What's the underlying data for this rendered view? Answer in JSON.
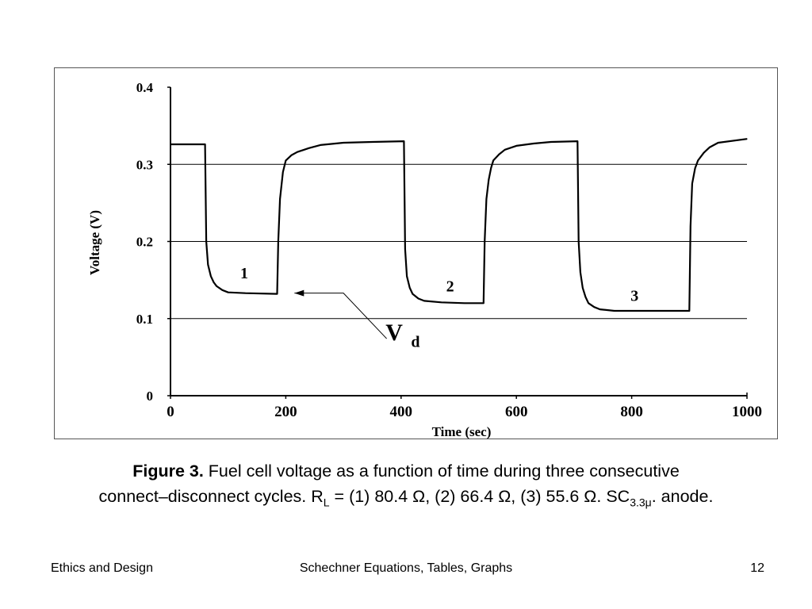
{
  "chart_data": {
    "type": "line",
    "title": "",
    "xlabel": "Time (sec)",
    "ylabel": "Voltage (V)",
    "xlim": [
      0,
      1000
    ],
    "ylim": [
      0,
      0.4
    ],
    "xticks": [
      0,
      200,
      400,
      600,
      800,
      1000
    ],
    "yticks": [
      0,
      0.1,
      0.2,
      0.3,
      0.4
    ],
    "xtick_labels": [
      "0",
      "200",
      "400",
      "600",
      "800",
      "1000"
    ],
    "ytick_labels": [
      "0",
      "0.1",
      "0.2",
      "0.3",
      "0.4"
    ],
    "grid": "horizontal",
    "series": [
      {
        "x": [
          0,
          60,
          62,
          65,
          70,
          75,
          80,
          90,
          100,
          130,
          185,
          187,
          190,
          195,
          200,
          210,
          220,
          240,
          260,
          300,
          350,
          405,
          407,
          410,
          415,
          420,
          430,
          440,
          470,
          510,
          543,
          545,
          548,
          552,
          556,
          560,
          570,
          580,
          600,
          630,
          660,
          706,
          708,
          711,
          715,
          720,
          725,
          735,
          745,
          770,
          810,
          860,
          900,
          902,
          905,
          910,
          915,
          925,
          935,
          950,
          1000
        ],
        "y": [
          0.326,
          0.326,
          0.2,
          0.17,
          0.155,
          0.147,
          0.142,
          0.137,
          0.134,
          0.133,
          0.132,
          0.2,
          0.255,
          0.29,
          0.305,
          0.312,
          0.316,
          0.321,
          0.325,
          0.328,
          0.329,
          0.33,
          0.19,
          0.155,
          0.14,
          0.132,
          0.126,
          0.123,
          0.121,
          0.12,
          0.12,
          0.2,
          0.255,
          0.28,
          0.295,
          0.305,
          0.313,
          0.319,
          0.324,
          0.327,
          0.329,
          0.33,
          0.2,
          0.16,
          0.14,
          0.128,
          0.12,
          0.115,
          0.112,
          0.11,
          0.11,
          0.11,
          0.11,
          0.22,
          0.275,
          0.295,
          0.305,
          0.315,
          0.322,
          0.328,
          0.333
        ]
      }
    ],
    "annotations": [
      {
        "text": "1",
        "x": 128,
        "y": 0.152
      },
      {
        "text": "2",
        "x": 485,
        "y": 0.135
      },
      {
        "text": "3",
        "x": 805,
        "y": 0.123
      },
      {
        "text": "V",
        "x": 388,
        "y": 0.072
      },
      {
        "text": "d",
        "x": 425,
        "y": 0.063
      }
    ],
    "vd_arrow": {
      "label": "Vd",
      "start": {
        "x": 375,
        "y": 0.074
      },
      "elbow": {
        "x": 300,
        "y": 0.133
      },
      "tip": {
        "x": 215,
        "y": 0.133
      }
    }
  },
  "caption": {
    "label": "Figure 3.",
    "line1": " Fuel cell voltage as a function of time during three consecutive",
    "line2_a": "connect–disconnect cycles. R",
    "line2_sub_L": "L",
    "line2_b": " = (1) 80.4 Ω, (2) 66.4 Ω, (3) 55.6 Ω. SC",
    "line2_sub_sc": "3.3μ",
    "line2_c": ". anode."
  },
  "footer": {
    "left": "Ethics and Design",
    "center": "Schechner  Equations, Tables, Graphs",
    "right": "12"
  }
}
